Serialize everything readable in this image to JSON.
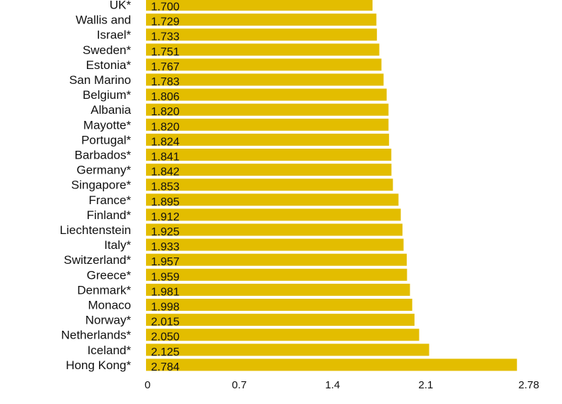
{
  "chart_data": {
    "type": "bar",
    "orientation": "horizontal",
    "categories": [
      "UK*",
      "Wallis and",
      "Israel*",
      "Sweden*",
      "Estonia*",
      "San Marino",
      "Belgium*",
      "Albania",
      "Mayotte*",
      "Portugal*",
      "Barbados*",
      "Germany*",
      "Singapore*",
      "France*",
      "Finland*",
      "Liechtenstein",
      "Italy*",
      "Switzerland*",
      "Greece*",
      "Denmark*",
      "Monaco",
      "Norway*",
      "Netherlands*",
      "Iceland*",
      "Hong Kong*"
    ],
    "values": [
      1.7,
      1.729,
      1.733,
      1.751,
      1.767,
      1.783,
      1.806,
      1.82,
      1.82,
      1.824,
      1.841,
      1.842,
      1.853,
      1.895,
      1.912,
      1.925,
      1.933,
      1.957,
      1.959,
      1.981,
      1.998,
      2.015,
      2.05,
      2.125,
      2.784
    ],
    "value_labels": [
      "1.700",
      "1.729",
      "1.733",
      "1.751",
      "1.767",
      "1.783",
      "1.806",
      "1.820",
      "1.820",
      "1.824",
      "1.841",
      "1.842",
      "1.853",
      "1.895",
      "1.912",
      "1.925",
      "1.933",
      "1.957",
      "1.959",
      "1.981",
      "1.998",
      "2.015",
      "2.050",
      "2.125",
      "2.784"
    ],
    "x_ticks": [
      0,
      0.7,
      1.4,
      2.1,
      2.78
    ],
    "x_tick_labels": [
      "0",
      "0.7",
      "1.4",
      "2.1",
      "2.78"
    ],
    "xlim": [
      0,
      2.78
    ],
    "bar_color": "#e3bd00",
    "title": "",
    "xlabel": "",
    "ylabel": "",
    "grid": false,
    "legend": "none"
  }
}
